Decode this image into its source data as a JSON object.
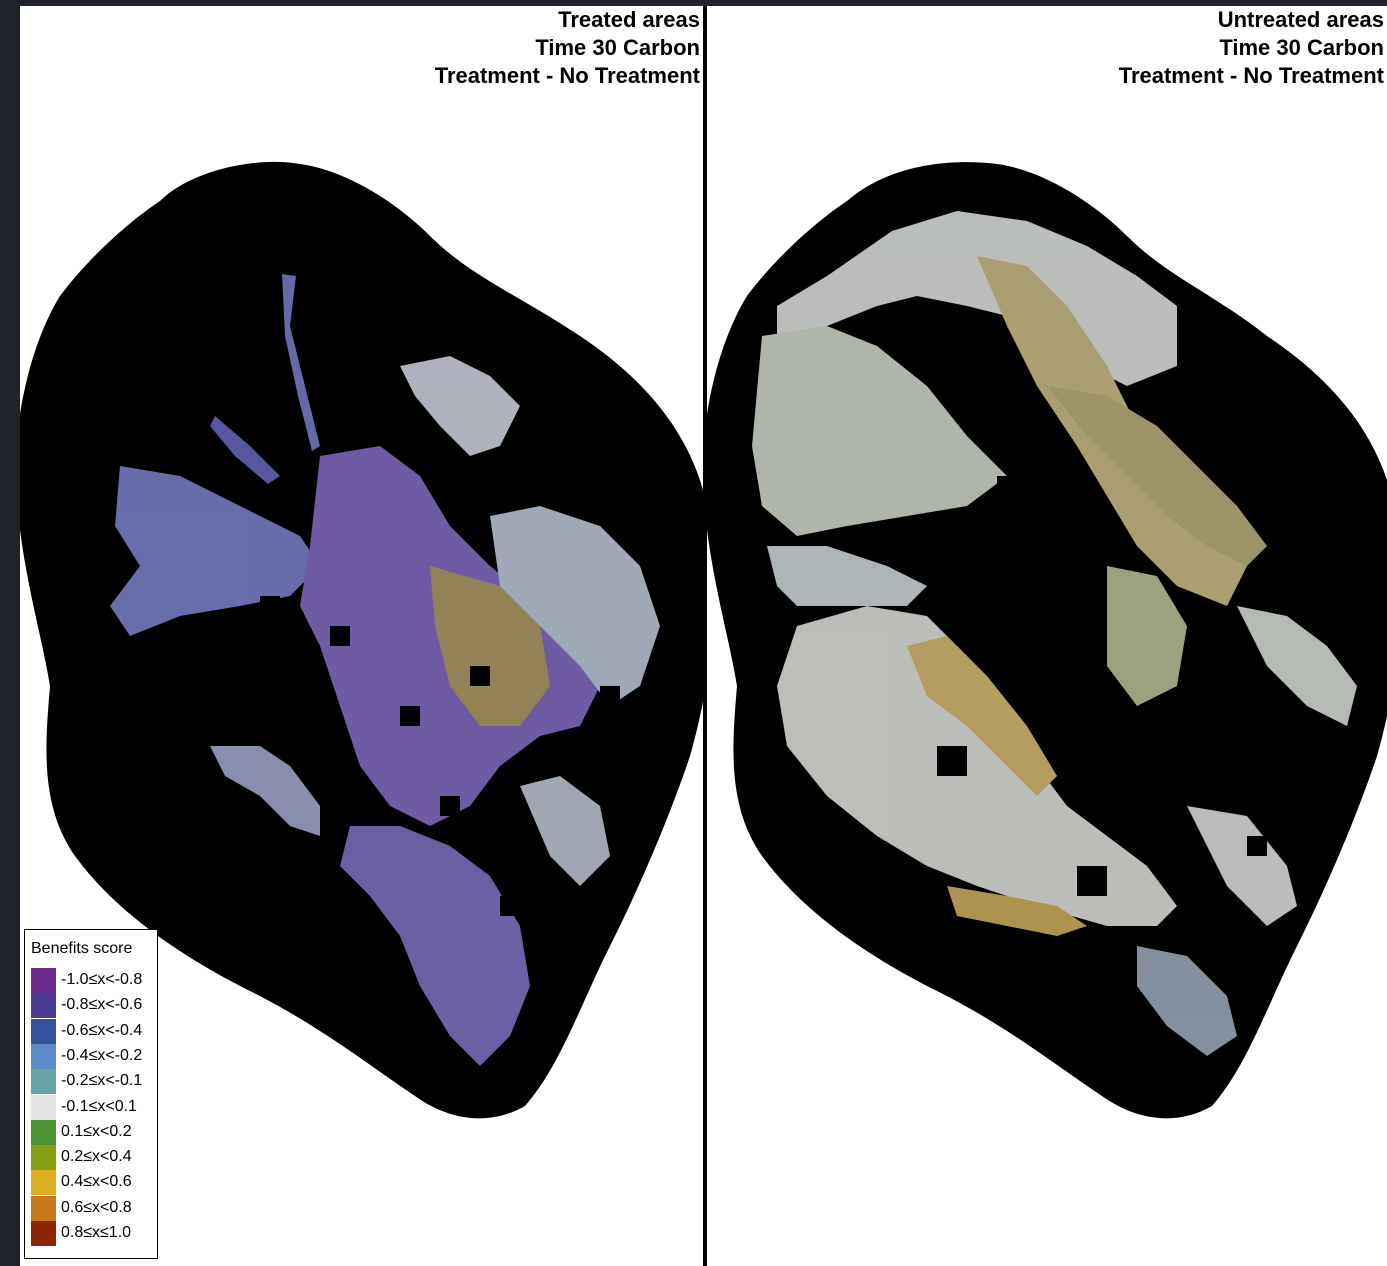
{
  "panels": [
    {
      "title_lines": [
        "Treated areas",
        "Time 30 Carbon",
        "Treatment - No Treatment"
      ]
    },
    {
      "title_lines": [
        "Untreated areas",
        "Time 30 Carbon",
        "Treatment - No Treatment"
      ]
    }
  ],
  "legend": {
    "title": "Benefits score",
    "items": [
      {
        "label": "-1.0≤x<-0.8",
        "color": "#6a2b8f"
      },
      {
        "label": "-0.8≤x<-0.6",
        "color": "#4b3a92"
      },
      {
        "label": "-0.6≤x<-0.4",
        "color": "#33539c"
      },
      {
        "label": "-0.4≤x<-0.2",
        "color": "#5f8cc9"
      },
      {
        "label": "-0.2≤x<-0.1",
        "color": "#64a3a6"
      },
      {
        "label": "-0.1≤x<0.1",
        "color": "#e4e4e4"
      },
      {
        "label": "0.1≤x<0.2",
        "color": "#4c9434"
      },
      {
        "label": "0.2≤x<0.4",
        "color": "#86a014"
      },
      {
        "label": "0.4≤x<0.6",
        "color": "#deaf21"
      },
      {
        "label": "0.6≤x<0.8",
        "color": "#c8761a"
      },
      {
        "label": "0.8≤x≤1.0",
        "color": "#8c2404"
      }
    ]
  },
  "colors": {
    "background_mask": "#000000",
    "frame": "#1f232b"
  }
}
